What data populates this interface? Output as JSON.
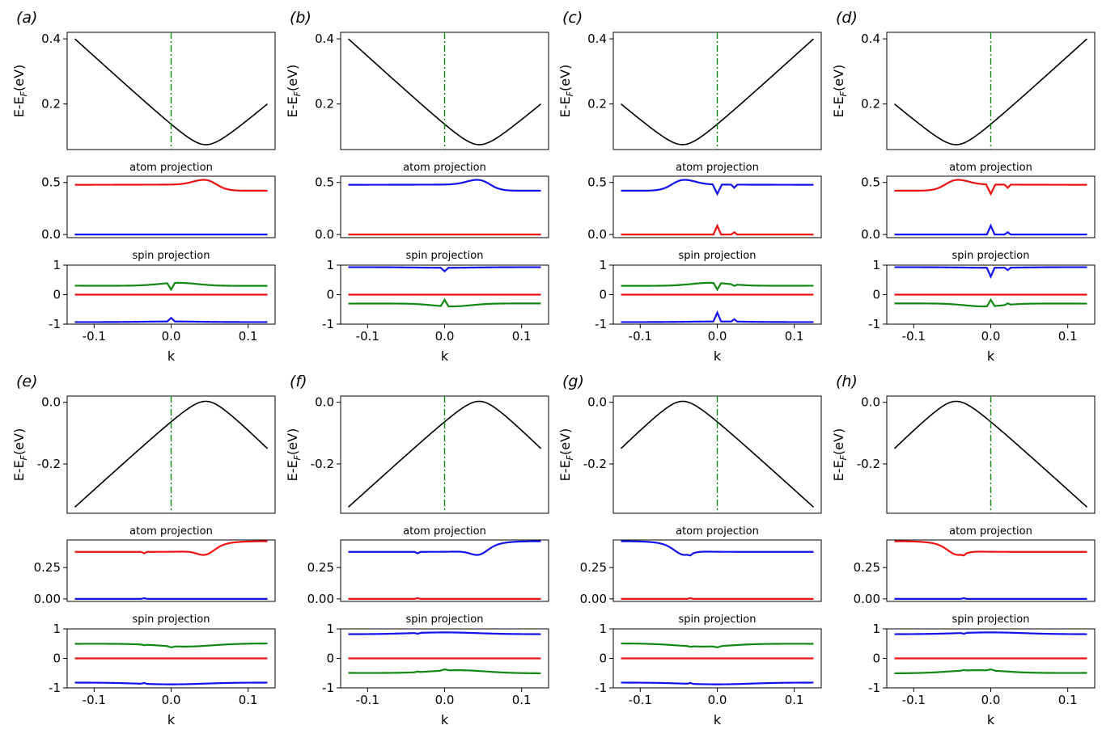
{
  "figure": {
    "row_sublabels": {
      "atom": "atom projection",
      "spin": "spin projection"
    },
    "ylabel_band": "E-E",
    "ylabel_sub": "F",
    "ylabel_unit": "(eV)",
    "xlabel": "k"
  },
  "chart_data": [
    {
      "label": "(a)",
      "band_type": "bar",
      "k_center": 0.045,
      "atom_primary": "red",
      "atom_main_sign": 1,
      "spin_sign": 1,
      "band": {
        "type": "line",
        "k_range": [
          -0.125,
          0.125
        ],
        "ylim": [
          0.06,
          0.42
        ],
        "yticks": [
          0.2,
          0.4
        ],
        "ytick_labels": [
          "0.2",
          "0.4"
        ],
        "extremum": {
          "k": 0.045,
          "E": 0.075
        },
        "edges": {
          "left": 0.4,
          "right": 0.2
        },
        "vline_k": 0.0
      },
      "atom": {
        "type": "line",
        "ylim": [
          -0.03,
          0.56
        ],
        "yticks": [
          0.0,
          0.5
        ],
        "ytick_labels": [
          "0.0",
          "0.5"
        ]
      },
      "spin": {
        "type": "line",
        "ylim": [
          -1,
          1
        ],
        "yticks": [
          -1,
          0,
          1
        ],
        "ytick_labels": [
          "-1",
          "0",
          "1"
        ]
      },
      "xticks": [
        -0.1,
        0.0,
        0.1
      ],
      "xtick_labels": [
        "-0.1",
        "0.0",
        "0.1"
      ]
    },
    {
      "label": "(b)",
      "band_type": "bar",
      "k_center": 0.045,
      "atom_primary": "blue",
      "atom_main_sign": 1,
      "spin_sign": -1,
      "band": {
        "type": "line",
        "k_range": [
          -0.125,
          0.125
        ],
        "ylim": [
          0.06,
          0.42
        ],
        "yticks": [
          0.2,
          0.4
        ],
        "ytick_labels": [
          "0.2",
          "0.4"
        ],
        "extremum": {
          "k": 0.045,
          "E": 0.075
        },
        "edges": {
          "left": 0.4,
          "right": 0.2
        },
        "vline_k": 0.0
      },
      "atom": {
        "type": "line",
        "ylim": [
          -0.03,
          0.56
        ],
        "yticks": [
          0.0,
          0.5
        ],
        "ytick_labels": [
          "0.0",
          "0.5"
        ]
      },
      "spin": {
        "type": "line",
        "ylim": [
          -1,
          1
        ],
        "yticks": [
          -1,
          0,
          1
        ],
        "ytick_labels": [
          "-1",
          "0",
          "1"
        ]
      },
      "xticks": [
        -0.1,
        0.0,
        0.1
      ],
      "xtick_labels": [
        "-0.1",
        "0.0",
        "0.1"
      ]
    },
    {
      "label": "(c)",
      "band_type": "bar",
      "k_center": -0.045,
      "atom_primary": "blue",
      "atom_main_sign": 1,
      "spin_sign": 1,
      "band": {
        "type": "line",
        "k_range": [
          -0.125,
          0.125
        ],
        "ylim": [
          0.06,
          0.42
        ],
        "yticks": [
          0.2,
          0.4
        ],
        "ytick_labels": [
          "0.2",
          "0.4"
        ],
        "extremum": {
          "k": -0.045,
          "E": 0.075
        },
        "edges": {
          "left": 0.2,
          "right": 0.4
        },
        "vline_k": 0.0
      },
      "atom": {
        "type": "line",
        "ylim": [
          -0.03,
          0.56
        ],
        "yticks": [
          0.0,
          0.5
        ],
        "ytick_labels": [
          "0.0",
          "0.5"
        ]
      },
      "spin": {
        "type": "line",
        "ylim": [
          -1,
          1
        ],
        "yticks": [
          -1,
          0,
          1
        ],
        "ytick_labels": [
          "-1",
          "0",
          "1"
        ]
      },
      "xticks": [
        -0.1,
        0.0,
        0.1
      ],
      "xtick_labels": [
        "-0.1",
        "0.0",
        "0.1"
      ]
    },
    {
      "label": "(d)",
      "band_type": "bar",
      "k_center": -0.045,
      "atom_primary": "red",
      "atom_main_sign": 1,
      "spin_sign": -1,
      "band": {
        "type": "line",
        "k_range": [
          -0.125,
          0.125
        ],
        "ylim": [
          0.06,
          0.42
        ],
        "yticks": [
          0.2,
          0.4
        ],
        "ytick_labels": [
          "0.2",
          "0.4"
        ],
        "extremum": {
          "k": -0.045,
          "E": 0.075
        },
        "edges": {
          "left": 0.2,
          "right": 0.4
        },
        "vline_k": 0.0
      },
      "atom": {
        "type": "line",
        "ylim": [
          -0.03,
          0.56
        ],
        "yticks": [
          0.0,
          0.5
        ],
        "ytick_labels": [
          "0.0",
          "0.5"
        ]
      },
      "spin": {
        "type": "line",
        "ylim": [
          -1,
          1
        ],
        "yticks": [
          -1,
          0,
          1
        ],
        "ytick_labels": [
          "-1",
          "0",
          "1"
        ]
      },
      "xticks": [
        -0.1,
        0.0,
        0.1
      ],
      "xtick_labels": [
        "-0.1",
        "0.0",
        "0.1"
      ]
    },
    {
      "label": "(e)",
      "band_type": "cap",
      "k_center": 0.045,
      "atom_primary": "red",
      "atom_main_sign": -1,
      "spin_sign": 1,
      "band": {
        "type": "line",
        "k_range": [
          -0.125,
          0.125
        ],
        "ylim": [
          -0.36,
          0.02
        ],
        "yticks": [
          -0.2,
          0.0
        ],
        "ytick_labels": [
          "-0.2",
          "0.0"
        ],
        "extremum": {
          "k": 0.045,
          "E": 0.003
        },
        "edges": {
          "left": -0.34,
          "right": -0.15
        },
        "vline_k": 0.0
      },
      "atom": {
        "type": "line",
        "ylim": [
          -0.02,
          0.47
        ],
        "yticks": [
          0.0,
          0.25
        ],
        "ytick_labels": [
          "0.00",
          "0.25"
        ]
      },
      "spin": {
        "type": "line",
        "ylim": [
          -1,
          1
        ],
        "yticks": [
          -1,
          0,
          1
        ],
        "ytick_labels": [
          "-1",
          "0",
          "1"
        ]
      },
      "xticks": [
        -0.1,
        0.0,
        0.1
      ],
      "xtick_labels": [
        "-0.1",
        "0.0",
        "0.1"
      ]
    },
    {
      "label": "(f)",
      "band_type": "cap",
      "k_center": 0.045,
      "atom_primary": "blue",
      "atom_main_sign": -1,
      "spin_sign": -1,
      "band": {
        "type": "line",
        "k_range": [
          -0.125,
          0.125
        ],
        "ylim": [
          -0.36,
          0.02
        ],
        "yticks": [
          -0.2,
          0.0
        ],
        "ytick_labels": [
          "-0.2",
          "0.0"
        ],
        "extremum": {
          "k": 0.045,
          "E": 0.003
        },
        "edges": {
          "left": -0.34,
          "right": -0.15
        },
        "vline_k": 0.0
      },
      "atom": {
        "type": "line",
        "ylim": [
          -0.02,
          0.47
        ],
        "yticks": [
          0.0,
          0.25
        ],
        "ytick_labels": [
          "0.00",
          "0.25"
        ]
      },
      "spin": {
        "type": "line",
        "ylim": [
          -1,
          1
        ],
        "yticks": [
          -1,
          0,
          1
        ],
        "ytick_labels": [
          "-1",
          "0",
          "1"
        ]
      },
      "xticks": [
        -0.1,
        0.0,
        0.1
      ],
      "xtick_labels": [
        "-0.1",
        "0.0",
        "0.1"
      ]
    },
    {
      "label": "(g)",
      "band_type": "cap",
      "k_center": -0.045,
      "atom_primary": "blue",
      "atom_main_sign": -1,
      "spin_sign": 1,
      "band": {
        "type": "line",
        "k_range": [
          -0.125,
          0.125
        ],
        "ylim": [
          -0.36,
          0.02
        ],
        "yticks": [
          -0.2,
          0.0
        ],
        "ytick_labels": [
          "-0.2",
          "0.0"
        ],
        "extremum": {
          "k": -0.045,
          "E": 0.003
        },
        "edges": {
          "left": -0.15,
          "right": -0.34
        },
        "vline_k": 0.0
      },
      "atom": {
        "type": "line",
        "ylim": [
          -0.02,
          0.47
        ],
        "yticks": [
          0.0,
          0.25
        ],
        "ytick_labels": [
          "0.00",
          "0.25"
        ]
      },
      "spin": {
        "type": "line",
        "ylim": [
          -1,
          1
        ],
        "yticks": [
          -1,
          0,
          1
        ],
        "ytick_labels": [
          "-1",
          "0",
          "1"
        ]
      },
      "xticks": [
        -0.1,
        0.0,
        0.1
      ],
      "xtick_labels": [
        "-0.1",
        "0.0",
        "0.1"
      ]
    },
    {
      "label": "(h)",
      "band_type": "cap",
      "k_center": -0.045,
      "atom_primary": "red",
      "atom_main_sign": -1,
      "spin_sign": -1,
      "band": {
        "type": "line",
        "k_range": [
          -0.125,
          0.125
        ],
        "ylim": [
          -0.36,
          0.02
        ],
        "yticks": [
          -0.2,
          0.0
        ],
        "ytick_labels": [
          "-0.2",
          "0.0"
        ],
        "extremum": {
          "k": -0.045,
          "E": 0.003
        },
        "edges": {
          "left": -0.15,
          "right": -0.34
        },
        "vline_k": 0.0
      },
      "atom": {
        "type": "line",
        "ylim": [
          -0.02,
          0.47
        ],
        "yticks": [
          0.0,
          0.25
        ],
        "ytick_labels": [
          "0.00",
          "0.25"
        ]
      },
      "spin": {
        "type": "line",
        "ylim": [
          -1,
          1
        ],
        "yticks": [
          -1,
          0,
          1
        ],
        "ytick_labels": [
          "-1",
          "0",
          "1"
        ]
      },
      "xticks": [
        -0.1,
        0.0,
        0.1
      ],
      "xtick_labels": [
        "-0.1",
        "0.0",
        "0.1"
      ]
    }
  ],
  "colors": {
    "band": "#000000",
    "vline": "#118811",
    "red": "#ee1111",
    "blue": "#1111ee",
    "green": "#118811"
  }
}
